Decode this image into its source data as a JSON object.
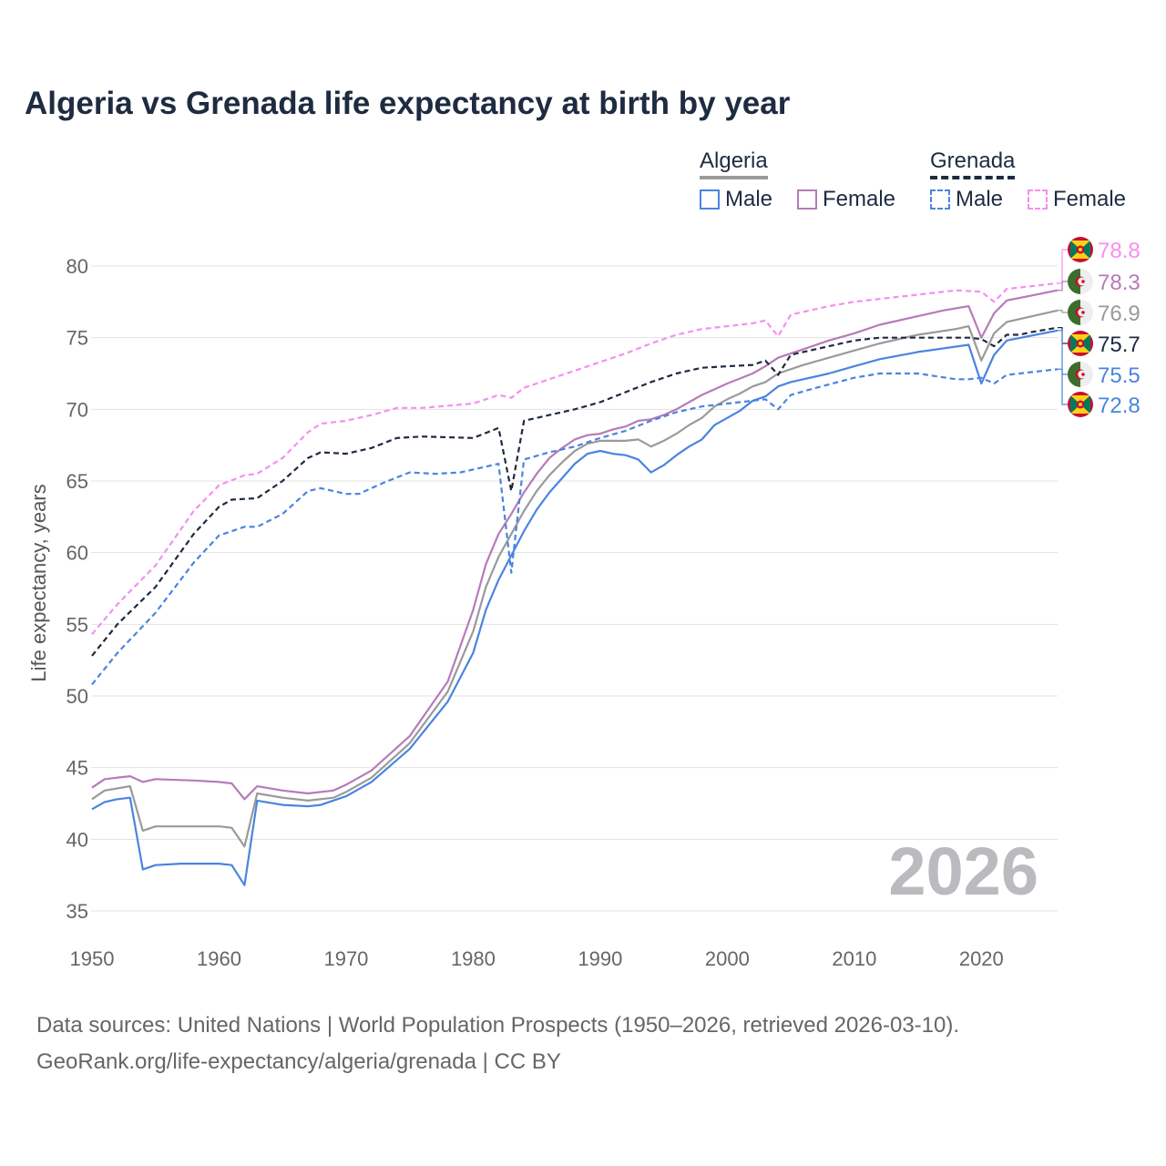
{
  "chart_data": {
    "type": "line",
    "title": "Algeria vs Grenada life expectancy at birth by year",
    "xlabel": "",
    "ylabel": "Life expectancy, years",
    "xlim": [
      1950,
      2026
    ],
    "ylim": [
      35,
      80
    ],
    "x_ticks": [
      1950,
      1960,
      1970,
      1980,
      1990,
      2000,
      2010,
      2020
    ],
    "y_ticks": [
      35,
      40,
      45,
      50,
      55,
      60,
      65,
      70,
      75,
      80
    ],
    "grid": true,
    "watermark_year": "2026",
    "legend": {
      "placement": "top-right",
      "groups": [
        {
          "name": "Algeria",
          "items": [
            "Male",
            "Female"
          ]
        },
        {
          "name": "Grenada",
          "items": [
            "Male",
            "Female"
          ]
        }
      ]
    },
    "colors": {
      "algeria_male": "#4a84e0",
      "algeria_female": "#b67bb8",
      "algeria_total": "#9a9a9a",
      "grenada_total": "#1e2b40",
      "grenada_male": "#4a84e0",
      "grenada_female": "#f78ef0"
    },
    "series": [
      {
        "name": "Grenada Female",
        "country": "Grenada",
        "color": "#f78ef0",
        "dashed": true,
        "end_label": "78.8",
        "points": [
          [
            1950,
            54.3
          ],
          [
            1952,
            56.4
          ],
          [
            1955,
            59.1
          ],
          [
            1958,
            62.9
          ],
          [
            1960,
            64.7
          ],
          [
            1962,
            65.4
          ],
          [
            1963,
            65.5
          ],
          [
            1965,
            66.6
          ],
          [
            1967,
            68.4
          ],
          [
            1968,
            69.0
          ],
          [
            1970,
            69.2
          ],
          [
            1972,
            69.6
          ],
          [
            1974,
            70.1
          ],
          [
            1976,
            70.1
          ],
          [
            1980,
            70.4
          ],
          [
            1982,
            71.0
          ],
          [
            1983,
            70.8
          ],
          [
            1984,
            71.5
          ],
          [
            1986,
            72.1
          ],
          [
            1988,
            72.7
          ],
          [
            1990,
            73.3
          ],
          [
            1992,
            73.9
          ],
          [
            1994,
            74.6
          ],
          [
            1996,
            75.2
          ],
          [
            1998,
            75.6
          ],
          [
            2000,
            75.8
          ],
          [
            2002,
            76.0
          ],
          [
            2003,
            76.2
          ],
          [
            2004,
            75.1
          ],
          [
            2005,
            76.6
          ],
          [
            2008,
            77.2
          ],
          [
            2010,
            77.5
          ],
          [
            2013,
            77.8
          ],
          [
            2016,
            78.1
          ],
          [
            2018,
            78.3
          ],
          [
            2020,
            78.2
          ],
          [
            2021,
            77.5
          ],
          [
            2022,
            78.4
          ],
          [
            2026,
            78.8
          ]
        ]
      },
      {
        "name": "Algeria Female",
        "country": "Algeria",
        "color": "#b67bb8",
        "dashed": false,
        "end_label": "78.3",
        "points": [
          [
            1950,
            43.6
          ],
          [
            1951,
            44.2
          ],
          [
            1953,
            44.4
          ],
          [
            1954,
            44.0
          ],
          [
            1955,
            44.2
          ],
          [
            1958,
            44.1
          ],
          [
            1960,
            44.0
          ],
          [
            1961,
            43.9
          ],
          [
            1962,
            42.8
          ],
          [
            1963,
            43.7
          ],
          [
            1965,
            43.4
          ],
          [
            1967,
            43.2
          ],
          [
            1969,
            43.4
          ],
          [
            1970,
            43.8
          ],
          [
            1972,
            44.8
          ],
          [
            1975,
            47.2
          ],
          [
            1978,
            51.0
          ],
          [
            1980,
            56.0
          ],
          [
            1981,
            59.2
          ],
          [
            1982,
            61.3
          ],
          [
            1983,
            62.7
          ],
          [
            1984,
            64.2
          ],
          [
            1985,
            65.5
          ],
          [
            1986,
            66.6
          ],
          [
            1987,
            67.3
          ],
          [
            1988,
            67.9
          ],
          [
            1989,
            68.2
          ],
          [
            1990,
            68.3
          ],
          [
            1991,
            68.6
          ],
          [
            1992,
            68.8
          ],
          [
            1993,
            69.2
          ],
          [
            1994,
            69.3
          ],
          [
            1995,
            69.6
          ],
          [
            1996,
            70.0
          ],
          [
            1998,
            71.0
          ],
          [
            2000,
            71.8
          ],
          [
            2002,
            72.5
          ],
          [
            2003,
            73.0
          ],
          [
            2004,
            73.6
          ],
          [
            2006,
            74.2
          ],
          [
            2008,
            74.8
          ],
          [
            2010,
            75.3
          ],
          [
            2012,
            75.9
          ],
          [
            2015,
            76.5
          ],
          [
            2017,
            76.9
          ],
          [
            2019,
            77.2
          ],
          [
            2020,
            75.0
          ],
          [
            2021,
            76.7
          ],
          [
            2022,
            77.6
          ],
          [
            2026,
            78.3
          ]
        ]
      },
      {
        "name": "Algeria",
        "country": "Algeria",
        "color": "#9a9a9a",
        "dashed": false,
        "end_label": "76.9",
        "points": [
          [
            1950,
            42.8
          ],
          [
            1951,
            43.4
          ],
          [
            1953,
            43.7
          ],
          [
            1954,
            40.6
          ],
          [
            1955,
            40.9
          ],
          [
            1960,
            40.9
          ],
          [
            1961,
            40.8
          ],
          [
            1962,
            39.5
          ],
          [
            1963,
            43.2
          ],
          [
            1965,
            42.9
          ],
          [
            1967,
            42.7
          ],
          [
            1969,
            42.9
          ],
          [
            1970,
            43.3
          ],
          [
            1972,
            44.3
          ],
          [
            1975,
            46.7
          ],
          [
            1978,
            50.3
          ],
          [
            1980,
            54.5
          ],
          [
            1981,
            57.6
          ],
          [
            1982,
            59.7
          ],
          [
            1983,
            61.3
          ],
          [
            1984,
            62.9
          ],
          [
            1985,
            64.3
          ],
          [
            1986,
            65.4
          ],
          [
            1987,
            66.3
          ],
          [
            1988,
            67.1
          ],
          [
            1989,
            67.6
          ],
          [
            1990,
            67.8
          ],
          [
            1992,
            67.8
          ],
          [
            1993,
            67.9
          ],
          [
            1994,
            67.4
          ],
          [
            1995,
            67.8
          ],
          [
            1996,
            68.3
          ],
          [
            1997,
            68.9
          ],
          [
            1998,
            69.4
          ],
          [
            1999,
            70.2
          ],
          [
            2000,
            70.7
          ],
          [
            2001,
            71.1
          ],
          [
            2002,
            71.6
          ],
          [
            2003,
            71.9
          ],
          [
            2004,
            72.5
          ],
          [
            2006,
            73.1
          ],
          [
            2008,
            73.6
          ],
          [
            2010,
            74.1
          ],
          [
            2012,
            74.6
          ],
          [
            2015,
            75.2
          ],
          [
            2018,
            75.6
          ],
          [
            2019,
            75.8
          ],
          [
            2020,
            73.4
          ],
          [
            2021,
            75.3
          ],
          [
            2022,
            76.1
          ],
          [
            2026,
            76.9
          ]
        ]
      },
      {
        "name": "Grenada",
        "country": "Grenada",
        "color": "#1e2b40",
        "dashed": true,
        "end_label": "75.7",
        "points": [
          [
            1950,
            52.8
          ],
          [
            1952,
            55.0
          ],
          [
            1955,
            57.6
          ],
          [
            1958,
            61.3
          ],
          [
            1960,
            63.2
          ],
          [
            1961,
            63.7
          ],
          [
            1963,
            63.8
          ],
          [
            1965,
            65.0
          ],
          [
            1967,
            66.6
          ],
          [
            1968,
            67.0
          ],
          [
            1970,
            66.9
          ],
          [
            1972,
            67.3
          ],
          [
            1974,
            68.0
          ],
          [
            1976,
            68.1
          ],
          [
            1980,
            68.0
          ],
          [
            1982,
            68.7
          ],
          [
            1983,
            64.3
          ],
          [
            1984,
            69.2
          ],
          [
            1986,
            69.6
          ],
          [
            1988,
            70.0
          ],
          [
            1990,
            70.5
          ],
          [
            1992,
            71.2
          ],
          [
            1994,
            71.9
          ],
          [
            1996,
            72.5
          ],
          [
            1998,
            72.9
          ],
          [
            2000,
            73.0
          ],
          [
            2002,
            73.1
          ],
          [
            2003,
            73.4
          ],
          [
            2004,
            72.4
          ],
          [
            2005,
            73.8
          ],
          [
            2008,
            74.4
          ],
          [
            2010,
            74.8
          ],
          [
            2012,
            75.0
          ],
          [
            2015,
            75.0
          ],
          [
            2019,
            75.0
          ],
          [
            2020,
            74.9
          ],
          [
            2021,
            74.4
          ],
          [
            2022,
            75.2
          ],
          [
            2023,
            75.2
          ],
          [
            2024,
            75.4
          ],
          [
            2026,
            75.7
          ]
        ]
      },
      {
        "name": "Algeria Male",
        "country": "Algeria",
        "color": "#4a84e0",
        "dashed": false,
        "end_label": "75.5",
        "points": [
          [
            1950,
            42.1
          ],
          [
            1951,
            42.6
          ],
          [
            1952,
            42.8
          ],
          [
            1953,
            42.9
          ],
          [
            1954,
            37.9
          ],
          [
            1955,
            38.2
          ],
          [
            1957,
            38.3
          ],
          [
            1960,
            38.3
          ],
          [
            1961,
            38.2
          ],
          [
            1962,
            36.8
          ],
          [
            1963,
            42.7
          ],
          [
            1965,
            42.4
          ],
          [
            1967,
            42.3
          ],
          [
            1968,
            42.4
          ],
          [
            1970,
            43.0
          ],
          [
            1972,
            44.0
          ],
          [
            1975,
            46.3
          ],
          [
            1978,
            49.6
          ],
          [
            1980,
            53.0
          ],
          [
            1981,
            56.0
          ],
          [
            1982,
            58.1
          ],
          [
            1983,
            59.8
          ],
          [
            1984,
            61.5
          ],
          [
            1985,
            63.0
          ],
          [
            1986,
            64.2
          ],
          [
            1987,
            65.2
          ],
          [
            1988,
            66.2
          ],
          [
            1989,
            66.9
          ],
          [
            1990,
            67.1
          ],
          [
            1991,
            66.9
          ],
          [
            1992,
            66.8
          ],
          [
            1993,
            66.5
          ],
          [
            1994,
            65.6
          ],
          [
            1995,
            66.1
          ],
          [
            1996,
            66.8
          ],
          [
            1997,
            67.4
          ],
          [
            1998,
            67.9
          ],
          [
            1999,
            68.9
          ],
          [
            2000,
            69.4
          ],
          [
            2001,
            69.9
          ],
          [
            2002,
            70.6
          ],
          [
            2003,
            70.9
          ],
          [
            2004,
            71.6
          ],
          [
            2005,
            71.9
          ],
          [
            2008,
            72.5
          ],
          [
            2010,
            73.0
          ],
          [
            2012,
            73.5
          ],
          [
            2015,
            74.0
          ],
          [
            2019,
            74.5
          ],
          [
            2020,
            71.8
          ],
          [
            2021,
            73.8
          ],
          [
            2022,
            74.8
          ],
          [
            2026,
            75.5
          ]
        ]
      },
      {
        "name": "Grenada Male",
        "country": "Grenada",
        "color": "#4a84e0",
        "dashed": true,
        "end_label": "72.8",
        "points": [
          [
            1950,
            50.8
          ],
          [
            1952,
            53.0
          ],
          [
            1955,
            55.8
          ],
          [
            1958,
            59.3
          ],
          [
            1960,
            61.2
          ],
          [
            1962,
            61.8
          ],
          [
            1963,
            61.8
          ],
          [
            1965,
            62.7
          ],
          [
            1967,
            64.3
          ],
          [
            1968,
            64.5
          ],
          [
            1970,
            64.1
          ],
          [
            1971,
            64.1
          ],
          [
            1973,
            64.9
          ],
          [
            1975,
            65.6
          ],
          [
            1977,
            65.5
          ],
          [
            1979,
            65.6
          ],
          [
            1982,
            66.2
          ],
          [
            1983,
            58.6
          ],
          [
            1984,
            66.5
          ],
          [
            1986,
            67.0
          ],
          [
            1988,
            67.4
          ],
          [
            1990,
            68.0
          ],
          [
            1992,
            68.5
          ],
          [
            1994,
            69.2
          ],
          [
            1996,
            69.8
          ],
          [
            1998,
            70.2
          ],
          [
            2000,
            70.4
          ],
          [
            2003,
            70.7
          ],
          [
            2004,
            70.0
          ],
          [
            2005,
            71.0
          ],
          [
            2007,
            71.5
          ],
          [
            2010,
            72.2
          ],
          [
            2012,
            72.5
          ],
          [
            2015,
            72.5
          ],
          [
            2018,
            72.1
          ],
          [
            2019,
            72.1
          ],
          [
            2020,
            72.2
          ],
          [
            2021,
            71.8
          ],
          [
            2022,
            72.4
          ],
          [
            2024,
            72.6
          ],
          [
            2026,
            72.8
          ]
        ]
      }
    ]
  },
  "footer": {
    "line1": "Data sources: United Nations | World Population Prospects (1950–2026, retrieved 2026-03-10).",
    "line2": "GeoRank.org/life-expectancy/algeria/grenada | CC BY"
  }
}
